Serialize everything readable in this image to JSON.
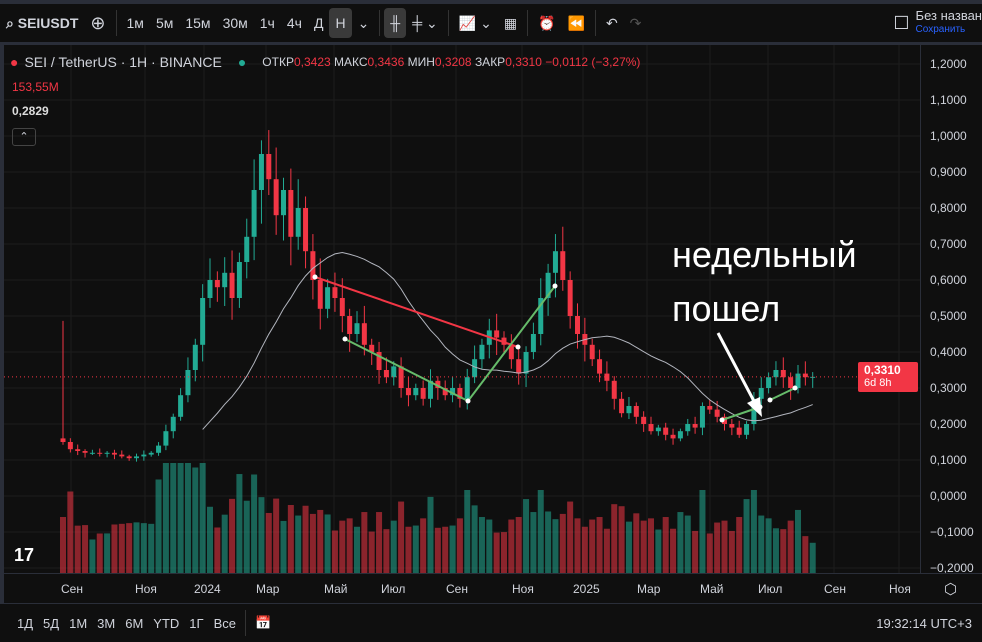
{
  "toolbar": {
    "symbol": "SEIUSDT",
    "intervals": [
      "1м",
      "5м",
      "15м",
      "30м",
      "1ч",
      "4ч",
      "Д",
      "Н"
    ],
    "active_interval": "Н",
    "layout_name": "Без назван",
    "save_label": "Сохранить"
  },
  "legend": {
    "title": "SEI / TetherUS · 1H · BINANCE",
    "open_label": "ОТКР",
    "open": "0,3423",
    "high_label": "МАКС",
    "high": "0,3436",
    "low_label": "МИН",
    "low": "0,3208",
    "close_label": "ЗАКР",
    "close": "0,3310",
    "change": "−0,0112 (−3,27%)",
    "volume": "153,55M",
    "ma": "0,2829"
  },
  "price_axis": {
    "ticks": [
      "1,2000",
      "1,1000",
      "1,0000",
      "0,9000",
      "0,8000",
      "0,7000",
      "0,6000",
      "0,5000",
      "0,4000",
      "0,3000",
      "0,2000",
      "0,1000",
      "0,0000",
      "−0,1000",
      "−0,2000"
    ],
    "last_price": "0,3310",
    "countdown": "6d 8h"
  },
  "time_axis": {
    "labels": [
      "Сен",
      "Ноя",
      "2024",
      "Мар",
      "Май",
      "Июл",
      "Сен",
      "Ноя",
      "2025",
      "Мар",
      "Май",
      "Июл",
      "Сен",
      "Ноя"
    ]
  },
  "annotation": {
    "line1": "недельный",
    "line2": "пошел"
  },
  "bottom": {
    "ranges": [
      "1Д",
      "5Д",
      "1М",
      "3М",
      "6М",
      "YTD",
      "1Г",
      "Все"
    ],
    "clock": "19:32:14 UTC+3"
  },
  "colors": {
    "up": "#22ab94",
    "down": "#f23645",
    "ma": "#b2b5be",
    "trend_red": "#f23645",
    "trend_green": "#66bb6a"
  },
  "chart_data": {
    "type": "candlestick",
    "interval": "weekly",
    "price_range": [
      -0.2,
      1.2
    ],
    "closes": [
      0.15,
      0.13,
      0.125,
      0.12,
      0.12,
      0.118,
      0.12,
      0.115,
      0.11,
      0.105,
      0.11,
      0.115,
      0.12,
      0.14,
      0.18,
      0.22,
      0.28,
      0.35,
      0.42,
      0.55,
      0.6,
      0.58,
      0.62,
      0.55,
      0.65,
      0.72,
      0.85,
      0.95,
      0.88,
      0.78,
      0.85,
      0.72,
      0.8,
      0.68,
      0.6,
      0.52,
      0.58,
      0.55,
      0.5,
      0.45,
      0.48,
      0.42,
      0.4,
      0.35,
      0.33,
      0.36,
      0.3,
      0.28,
      0.3,
      0.27,
      0.32,
      0.3,
      0.28,
      0.3,
      0.27,
      0.33,
      0.38,
      0.42,
      0.46,
      0.44,
      0.42,
      0.38,
      0.34,
      0.4,
      0.45,
      0.55,
      0.62,
      0.68,
      0.6,
      0.5,
      0.45,
      0.42,
      0.38,
      0.34,
      0.32,
      0.27,
      0.23,
      0.25,
      0.22,
      0.2,
      0.18,
      0.19,
      0.17,
      0.16,
      0.18,
      0.2,
      0.19,
      0.25,
      0.24,
      0.22,
      0.2,
      0.19,
      0.17,
      0.2,
      0.27,
      0.3,
      0.33,
      0.35,
      0.33,
      0.3,
      0.34,
      0.33,
      0.331
    ]
  }
}
